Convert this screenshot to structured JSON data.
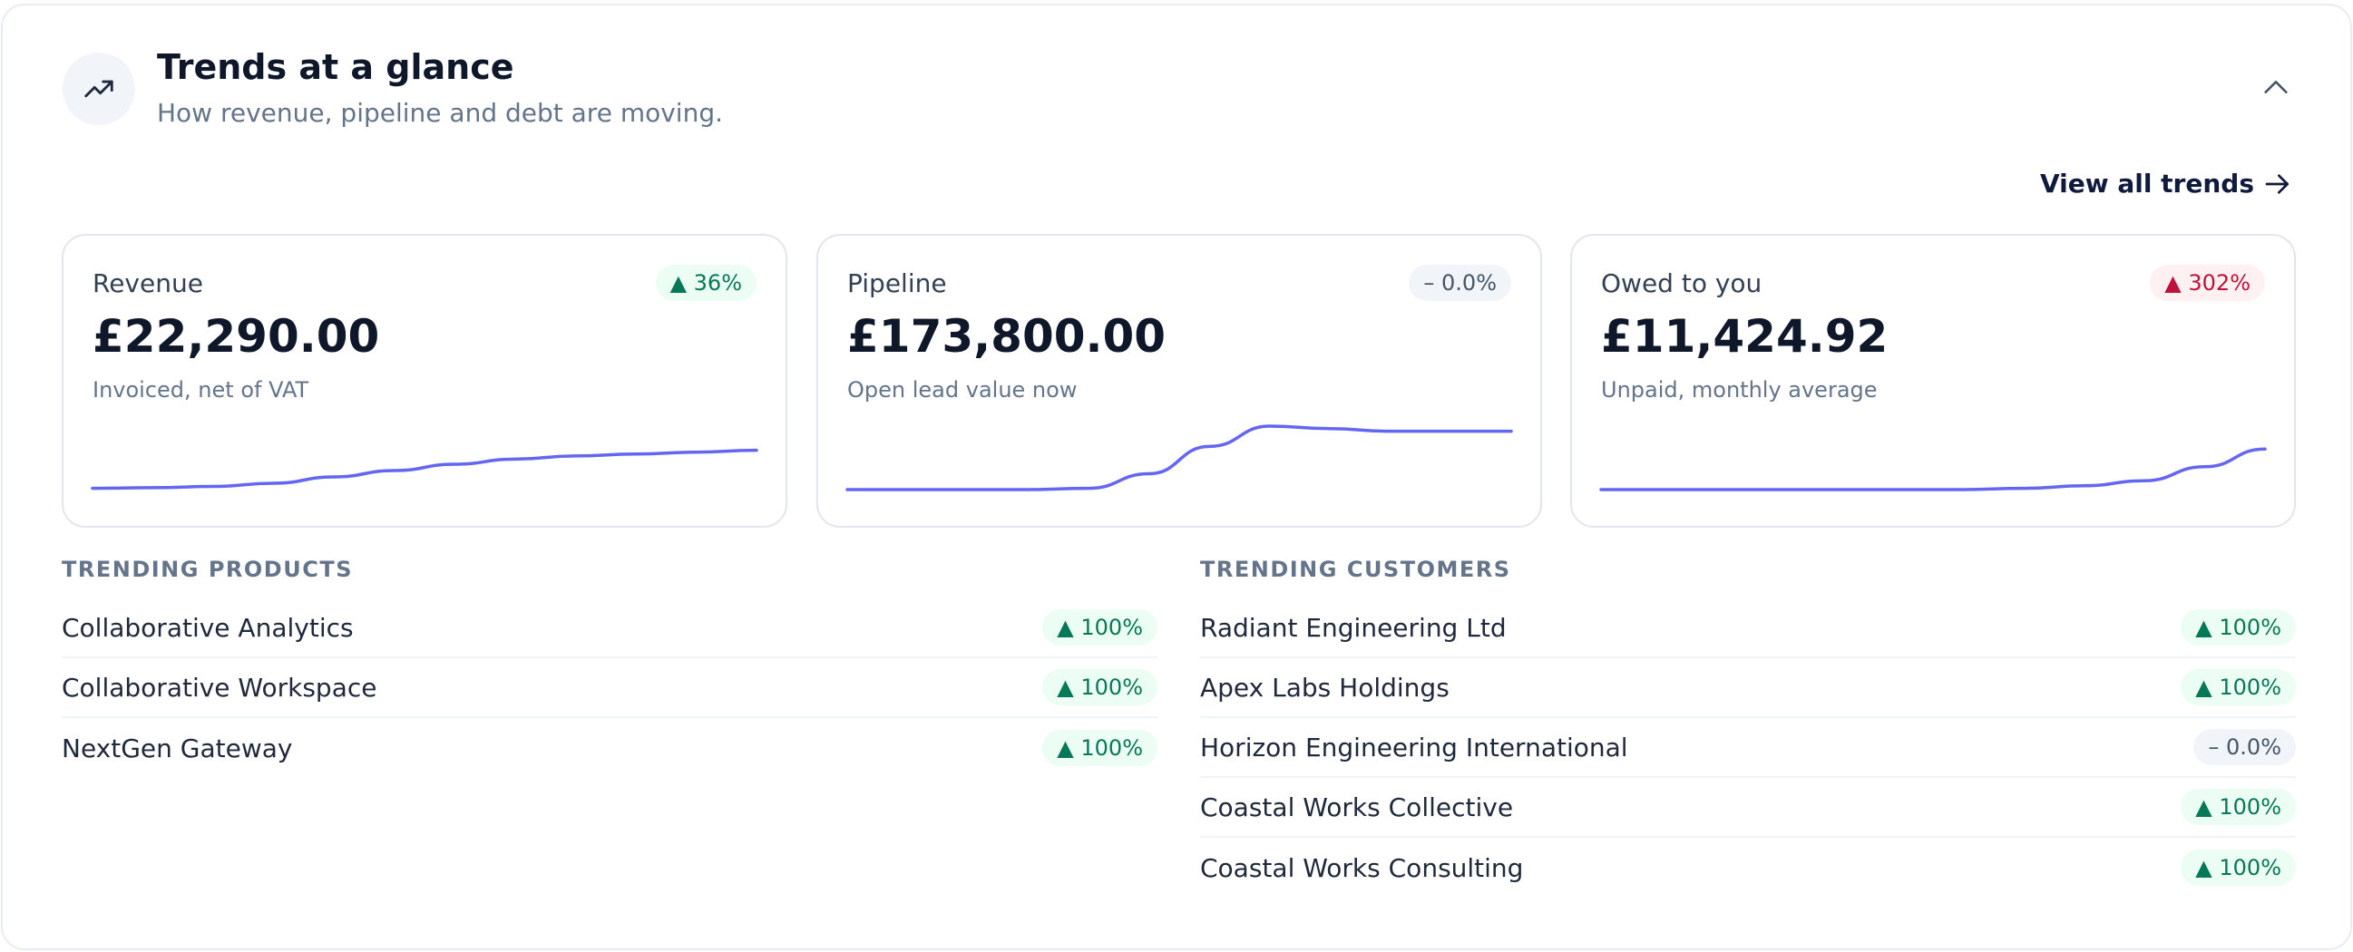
{
  "header": {
    "icon": "trend-up-icon",
    "title": "Trends at a glance",
    "subtitle": "How revenue, pipeline and debt are moving.",
    "collapse_icon": "chevron-up-icon"
  },
  "view_all": {
    "label": "View all trends",
    "icon": "arrow-right-icon"
  },
  "accent_color": "#6366f1",
  "cards": [
    {
      "label": "Revenue",
      "value": "£22,290.00",
      "note": "Invoiced, net of VAT",
      "badge": "▲ 36%",
      "badge_tone": "up",
      "spark": [
        0.02,
        0.03,
        0.05,
        0.1,
        0.2,
        0.3,
        0.4,
        0.48,
        0.53,
        0.56,
        0.59,
        0.62
      ]
    },
    {
      "label": "Pipeline",
      "value": "£173,800.00",
      "note": "Open lead value now",
      "badge": "– 0.0%",
      "badge_tone": "flat",
      "spark": [
        0.0,
        0.0,
        0.0,
        0.0,
        0.02,
        0.25,
        0.68,
        1.0,
        0.96,
        0.92,
        0.92,
        0.92
      ]
    },
    {
      "label": "Owed to you",
      "value": "£11,424.92",
      "note": "Unpaid, monthly average",
      "badge": "▲ 302%",
      "badge_tone": "bad",
      "spark": [
        0.0,
        0.0,
        0.0,
        0.0,
        0.0,
        0.0,
        0.0,
        0.02,
        0.06,
        0.14,
        0.36,
        0.64
      ]
    }
  ],
  "trending_products": {
    "title": "TRENDING PRODUCTS",
    "items": [
      {
        "name": "Collaborative Analytics",
        "badge": "▲ 100%",
        "tone": "up"
      },
      {
        "name": "Collaborative Workspace",
        "badge": "▲ 100%",
        "tone": "up"
      },
      {
        "name": "NextGen Gateway",
        "badge": "▲ 100%",
        "tone": "up"
      }
    ]
  },
  "trending_customers": {
    "title": "TRENDING CUSTOMERS",
    "items": [
      {
        "name": "Radiant Engineering Ltd",
        "badge": "▲ 100%",
        "tone": "up"
      },
      {
        "name": "Apex Labs Holdings",
        "badge": "▲ 100%",
        "tone": "up"
      },
      {
        "name": "Horizon Engineering International",
        "badge": "– 0.0%",
        "tone": "flat"
      },
      {
        "name": "Coastal Works Collective",
        "badge": "▲ 100%",
        "tone": "up"
      },
      {
        "name": "Coastal Works Consulting",
        "badge": "▲ 100%",
        "tone": "up"
      }
    ]
  }
}
